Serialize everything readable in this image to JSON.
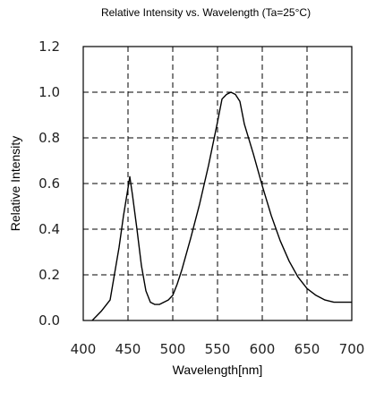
{
  "chart_data": {
    "type": "line",
    "title": "Relative Intensity vs. Wavelength (Ta=25°C)",
    "xlabel": "Wavelength[nm]",
    "ylabel": "Relative Intensity",
    "xlim": [
      400,
      700
    ],
    "ylim": [
      0.0,
      1.2
    ],
    "x_ticks": [
      400,
      450,
      500,
      550,
      600,
      650,
      700
    ],
    "x_tick_labels": [
      "400",
      "450",
      "500",
      "550",
      "600",
      "650",
      "700"
    ],
    "y_ticks": [
      0.0,
      0.2,
      0.4,
      0.6,
      0.8,
      1.0,
      1.2
    ],
    "y_tick_labels": [
      "0.0",
      "0.2",
      "0.4",
      "0.6",
      "0.8",
      "1.0",
      "1.2"
    ],
    "grid": true,
    "grid_style": "dashed",
    "series": [
      {
        "x": [
          410,
          420,
          430,
          440,
          445,
          450,
          452,
          455,
          460,
          465,
          470,
          475,
          480,
          485,
          490,
          495,
          500,
          505,
          510,
          520,
          530,
          540,
          550,
          555,
          560,
          565,
          570,
          575,
          580,
          590,
          600,
          610,
          620,
          630,
          640,
          650,
          660,
          670,
          680,
          690,
          700
        ],
        "y": [
          0.0,
          0.04,
          0.09,
          0.32,
          0.46,
          0.58,
          0.63,
          0.55,
          0.4,
          0.24,
          0.13,
          0.08,
          0.07,
          0.07,
          0.08,
          0.09,
          0.11,
          0.16,
          0.22,
          0.36,
          0.51,
          0.68,
          0.87,
          0.97,
          0.99,
          1.0,
          0.99,
          0.96,
          0.86,
          0.73,
          0.59,
          0.46,
          0.35,
          0.26,
          0.19,
          0.14,
          0.11,
          0.09,
          0.08,
          0.08,
          0.08
        ]
      }
    ]
  }
}
